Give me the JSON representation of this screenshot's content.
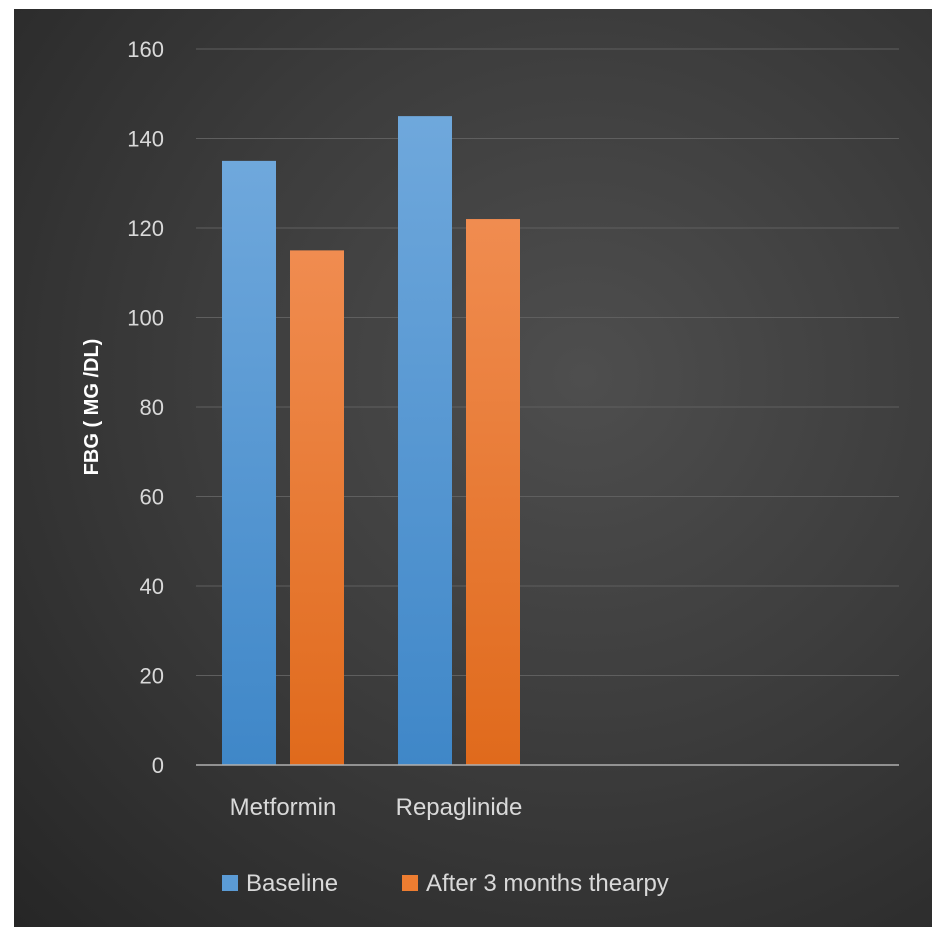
{
  "chart_data": {
    "type": "bar",
    "categories": [
      "Metformin",
      "Repaglinide"
    ],
    "series": [
      {
        "name": "Baseline",
        "values": [
          135,
          145
        ],
        "color": "#5b9bd5"
      },
      {
        "name": "After 3 months thearpy",
        "values": [
          115,
          122
        ],
        "color": "#ed7d31"
      }
    ],
    "ylabel": "FBG ( MG /DL)",
    "ylim": [
      0,
      160
    ],
    "yticks": [
      0,
      20,
      40,
      60,
      80,
      100,
      120,
      140,
      160
    ],
    "grid": true,
    "legend_position": "bottom"
  }
}
